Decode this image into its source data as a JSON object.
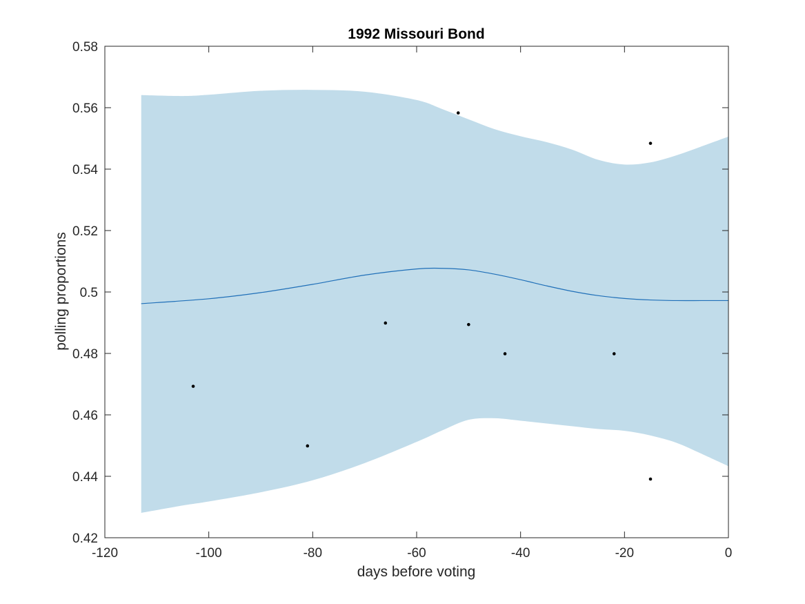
{
  "chart_data": {
    "type": "line",
    "title": "1992 Missouri Bond",
    "xlabel": "days before voting",
    "ylabel": "polling proportions",
    "xlim": [
      -120,
      0
    ],
    "ylim": [
      0.42,
      0.58
    ],
    "xticks": [
      -120,
      -100,
      -80,
      -60,
      -40,
      -20,
      0
    ],
    "yticks": [
      0.42,
      0.44,
      0.46,
      0.48,
      0.5,
      0.52,
      0.54,
      0.56,
      0.58
    ],
    "xtick_labels": [
      "-120",
      "-100",
      "-80",
      "-60",
      "-40",
      "-20",
      "0"
    ],
    "ytick_labels": [
      "0.42",
      "0.44",
      "0.46",
      "0.48",
      "0.5",
      "0.52",
      "0.54",
      "0.56",
      "0.58"
    ],
    "grid": false,
    "legend": "none",
    "colors": {
      "band": "#c1dcea",
      "line": "#1f6fb8",
      "points": "#000000",
      "axes": "#262626"
    },
    "mean_line": {
      "x": [
        -113,
        -100,
        -90,
        -80,
        -70,
        -60,
        -55,
        -50,
        -45,
        -40,
        -35,
        -30,
        -25,
        -20,
        -15,
        -10,
        -5,
        0
      ],
      "y": [
        0.4962,
        0.4978,
        0.4998,
        0.5025,
        0.5055,
        0.5075,
        0.5077,
        0.5072,
        0.5058,
        0.504,
        0.502,
        0.5002,
        0.4988,
        0.4979,
        0.4974,
        0.4972,
        0.4972,
        0.4972
      ]
    },
    "band": {
      "x": [
        -113,
        -105,
        -100,
        -90,
        -80,
        -70,
        -60,
        -55,
        -50,
        -45,
        -40,
        -35,
        -30,
        -25,
        -20,
        -15,
        -10,
        -5,
        0
      ],
      "upper": [
        0.5641,
        0.5638,
        0.5642,
        0.5655,
        0.5658,
        0.5652,
        0.5625,
        0.5595,
        0.5562,
        0.553,
        0.5507,
        0.5488,
        0.5463,
        0.543,
        0.5415,
        0.5422,
        0.5445,
        0.5475,
        0.5506
      ],
      "lower": [
        0.4281,
        0.4305,
        0.4318,
        0.4348,
        0.4387,
        0.4443,
        0.4512,
        0.455,
        0.4584,
        0.4589,
        0.4581,
        0.4572,
        0.4563,
        0.4554,
        0.4548,
        0.4533,
        0.4509,
        0.4472,
        0.4433
      ]
    },
    "points": [
      {
        "x": -103,
        "y": 0.4693
      },
      {
        "x": -81,
        "y": 0.4499
      },
      {
        "x": -66,
        "y": 0.4899
      },
      {
        "x": -52,
        "y": 0.5583
      },
      {
        "x": -50,
        "y": 0.4894
      },
      {
        "x": -43,
        "y": 0.4799
      },
      {
        "x": -22,
        "y": 0.4799
      },
      {
        "x": -15,
        "y": 0.5484
      },
      {
        "x": -15,
        "y": 0.4391
      }
    ]
  }
}
